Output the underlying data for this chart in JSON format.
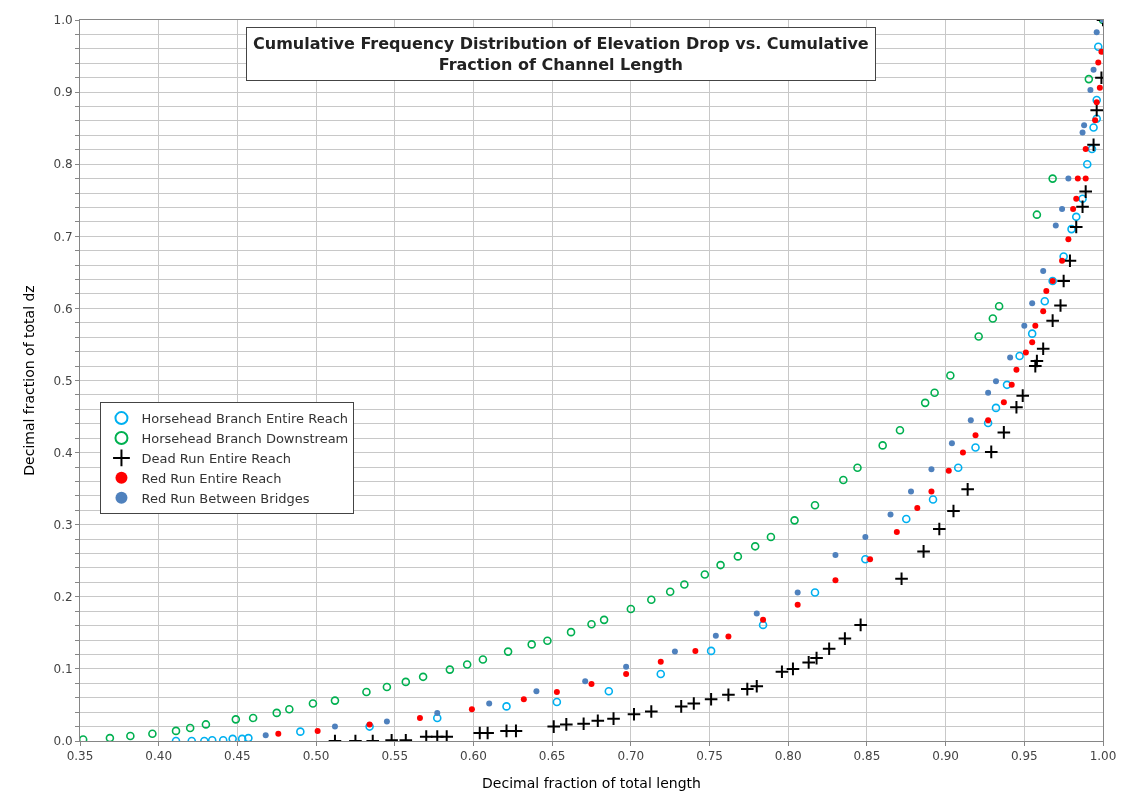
{
  "chart_data": {
    "type": "scatter",
    "title": "Cumulative Frequency Distribution of Elevation Drop vs. Cumulative Fraction of Channel Length",
    "xlabel": "Decimal fraction of total length",
    "ylabel": "Decimal fraction of total dz",
    "xlim": [
      0.35,
      1.0
    ],
    "ylim": [
      0.0,
      1.0
    ],
    "xticks": [
      {
        "value": 0.35,
        "label": "0.35"
      },
      {
        "value": 0.4,
        "label": "0.40"
      },
      {
        "value": 0.45,
        "label": "0.45"
      },
      {
        "value": 0.5,
        "label": "0.50"
      },
      {
        "value": 0.55,
        "label": "0.55"
      },
      {
        "value": 0.6,
        "label": "0.60"
      },
      {
        "value": 0.65,
        "label": "0.65"
      },
      {
        "value": 0.7,
        "label": "0.70"
      },
      {
        "value": 0.75,
        "label": "0.75"
      },
      {
        "value": 0.8,
        "label": "0.80"
      },
      {
        "value": 0.85,
        "label": "0.85"
      },
      {
        "value": 0.9,
        "label": "0.90"
      },
      {
        "value": 0.95,
        "label": "0.95"
      },
      {
        "value": 1.0,
        "label": "1.00"
      }
    ],
    "yticks": [
      {
        "value": 0.0,
        "label": "0.0"
      },
      {
        "value": 0.02,
        "label": null
      },
      {
        "value": 0.04,
        "label": null
      },
      {
        "value": 0.06,
        "label": null
      },
      {
        "value": 0.08,
        "label": null
      },
      {
        "value": 0.1,
        "label": "0.1"
      },
      {
        "value": 0.12,
        "label": null
      },
      {
        "value": 0.14,
        "label": null
      },
      {
        "value": 0.16,
        "label": null
      },
      {
        "value": 0.18,
        "label": null
      },
      {
        "value": 0.2,
        "label": "0.2"
      },
      {
        "value": 0.22,
        "label": null
      },
      {
        "value": 0.24,
        "label": null
      },
      {
        "value": 0.26,
        "label": null
      },
      {
        "value": 0.28,
        "label": null
      },
      {
        "value": 0.3,
        "label": "0.3"
      },
      {
        "value": 0.32,
        "label": null
      },
      {
        "value": 0.34,
        "label": null
      },
      {
        "value": 0.36,
        "label": null
      },
      {
        "value": 0.38,
        "label": null
      },
      {
        "value": 0.4,
        "label": "0.4"
      },
      {
        "value": 0.42,
        "label": null
      },
      {
        "value": 0.44,
        "label": null
      },
      {
        "value": 0.46,
        "label": null
      },
      {
        "value": 0.48,
        "label": null
      },
      {
        "value": 0.5,
        "label": "0.5"
      },
      {
        "value": 0.52,
        "label": null
      },
      {
        "value": 0.54,
        "label": null
      },
      {
        "value": 0.56,
        "label": null
      },
      {
        "value": 0.58,
        "label": null
      },
      {
        "value": 0.6,
        "label": "0.6"
      },
      {
        "value": 0.62,
        "label": null
      },
      {
        "value": 0.64,
        "label": null
      },
      {
        "value": 0.66,
        "label": null
      },
      {
        "value": 0.68,
        "label": null
      },
      {
        "value": 0.7,
        "label": "0.7"
      },
      {
        "value": 0.72,
        "label": null
      },
      {
        "value": 0.74,
        "label": null
      },
      {
        "value": 0.76,
        "label": null
      },
      {
        "value": 0.78,
        "label": null
      },
      {
        "value": 0.8,
        "label": "0.8"
      },
      {
        "value": 0.82,
        "label": null
      },
      {
        "value": 0.84,
        "label": null
      },
      {
        "value": 0.86,
        "label": null
      },
      {
        "value": 0.88,
        "label": null
      },
      {
        "value": 0.9,
        "label": "0.9"
      },
      {
        "value": 0.92,
        "label": null
      },
      {
        "value": 0.94,
        "label": null
      },
      {
        "value": 0.96,
        "label": null
      },
      {
        "value": 0.98,
        "label": null
      },
      {
        "value": 1.0,
        "label": "1.0"
      }
    ],
    "grid": true,
    "legend": "left",
    "series": [
      {
        "name": "Horsehead Branch Entire Reach",
        "color": "#00b0f0",
        "marker": "circle-open",
        "x": [
          0.411,
          0.421,
          0.429,
          0.434,
          0.441,
          0.447,
          0.453,
          0.457,
          0.49,
          0.534,
          0.577,
          0.621,
          0.653,
          0.686,
          0.719,
          0.751,
          0.784,
          0.817,
          0.849,
          0.875,
          0.892,
          0.908,
          0.919,
          0.927,
          0.932,
          0.939,
          0.947,
          0.955,
          0.963,
          0.968,
          0.975,
          0.98,
          0.983,
          0.987,
          0.99,
          0.993,
          0.994,
          0.996,
          0.996,
          0.997
        ],
        "values": [
          0.0,
          0.0,
          0.0,
          0.001,
          0.001,
          0.003,
          0.003,
          0.004,
          0.013,
          0.02,
          0.032,
          0.048,
          0.054,
          0.069,
          0.093,
          0.125,
          0.161,
          0.206,
          0.252,
          0.308,
          0.335,
          0.379,
          0.407,
          0.441,
          0.462,
          0.494,
          0.534,
          0.565,
          0.61,
          0.638,
          0.672,
          0.71,
          0.727,
          0.752,
          0.8,
          0.821,
          0.851,
          0.863,
          0.889,
          0.963
        ]
      },
      {
        "name": "Horsehead Branch Downstream",
        "color": "#00b050",
        "marker": "circle-open",
        "x": [
          0.352,
          0.369,
          0.382,
          0.396,
          0.411,
          0.42,
          0.43,
          0.449,
          0.46,
          0.475,
          0.483,
          0.498,
          0.512,
          0.532,
          0.545,
          0.557,
          0.568,
          0.585,
          0.596,
          0.606,
          0.622,
          0.637,
          0.647,
          0.662,
          0.675,
          0.683,
          0.7,
          0.713,
          0.725,
          0.734,
          0.747,
          0.757,
          0.768,
          0.779,
          0.789,
          0.804,
          0.817,
          0.835,
          0.844,
          0.86,
          0.871,
          0.887,
          0.893,
          0.903,
          0.921,
          0.93,
          0.934,
          0.958,
          0.968,
          0.991,
          1.0
        ],
        "values": [
          0.002,
          0.004,
          0.007,
          0.01,
          0.014,
          0.018,
          0.023,
          0.03,
          0.032,
          0.039,
          0.044,
          0.052,
          0.056,
          0.068,
          0.075,
          0.082,
          0.089,
          0.099,
          0.106,
          0.113,
          0.124,
          0.134,
          0.139,
          0.151,
          0.162,
          0.168,
          0.183,
          0.196,
          0.207,
          0.217,
          0.231,
          0.244,
          0.256,
          0.27,
          0.283,
          0.306,
          0.327,
          0.362,
          0.379,
          0.41,
          0.431,
          0.469,
          0.483,
          0.507,
          0.561,
          0.586,
          0.603,
          0.73,
          0.78,
          0.918,
          1.0
        ]
      },
      {
        "name": "Dead Run Entire Reach",
        "color": "#000000",
        "marker": "cross",
        "x": [
          0.512,
          0.525,
          0.536,
          0.548,
          0.557,
          0.57,
          0.577,
          0.583,
          0.604,
          0.609,
          0.621,
          0.627,
          0.651,
          0.659,
          0.67,
          0.679,
          0.689,
          0.702,
          0.713,
          0.732,
          0.74,
          0.751,
          0.762,
          0.774,
          0.78,
          0.796,
          0.803,
          0.813,
          0.818,
          0.826,
          0.836,
          0.846,
          0.872,
          0.886,
          0.896,
          0.905,
          0.914,
          0.929,
          0.937,
          0.945,
          0.949,
          0.957,
          0.958,
          0.962,
          0.968,
          0.973,
          0.975,
          0.979,
          0.983,
          0.987,
          0.989,
          0.994,
          0.996,
          0.999,
          1.0
        ],
        "values": [
          0.0,
          0.0,
          0.0,
          0.001,
          0.001,
          0.006,
          0.006,
          0.006,
          0.011,
          0.011,
          0.014,
          0.014,
          0.02,
          0.023,
          0.024,
          0.028,
          0.031,
          0.037,
          0.041,
          0.048,
          0.052,
          0.058,
          0.064,
          0.072,
          0.076,
          0.096,
          0.1,
          0.109,
          0.115,
          0.128,
          0.142,
          0.161,
          0.225,
          0.263,
          0.294,
          0.319,
          0.349,
          0.401,
          0.428,
          0.463,
          0.479,
          0.52,
          0.527,
          0.544,
          0.583,
          0.604,
          0.638,
          0.666,
          0.713,
          0.741,
          0.762,
          0.827,
          0.875,
          0.92,
          1.0
        ]
      },
      {
        "name": "Red Run Entire Reach",
        "color": "#ff0000",
        "marker": "circle",
        "x": [
          0.476,
          0.501,
          0.534,
          0.566,
          0.599,
          0.632,
          0.653,
          0.675,
          0.697,
          0.719,
          0.741,
          0.762,
          0.784,
          0.806,
          0.83,
          0.852,
          0.869,
          0.882,
          0.891,
          0.902,
          0.911,
          0.919,
          0.927,
          0.937,
          0.942,
          0.945,
          0.951,
          0.955,
          0.957,
          0.962,
          0.964,
          0.968,
          0.974,
          0.978,
          0.981,
          0.983,
          0.984,
          0.989,
          0.989,
          0.995,
          0.996,
          0.998,
          0.997,
          0.999
        ],
        "values": [
          0.01,
          0.014,
          0.023,
          0.032,
          0.044,
          0.058,
          0.068,
          0.079,
          0.093,
          0.11,
          0.125,
          0.145,
          0.168,
          0.189,
          0.223,
          0.252,
          0.29,
          0.323,
          0.346,
          0.375,
          0.4,
          0.424,
          0.445,
          0.47,
          0.494,
          0.515,
          0.539,
          0.553,
          0.576,
          0.596,
          0.624,
          0.638,
          0.666,
          0.696,
          0.738,
          0.752,
          0.78,
          0.78,
          0.821,
          0.861,
          0.886,
          0.906,
          0.941,
          0.956
        ]
      },
      {
        "name": "Red Run Between Bridges",
        "color": "#4f81bd",
        "marker": "circle",
        "x": [
          0.468,
          0.512,
          0.545,
          0.577,
          0.61,
          0.64,
          0.671,
          0.697,
          0.728,
          0.754,
          0.78,
          0.806,
          0.83,
          0.849,
          0.865,
          0.878,
          0.891,
          0.904,
          0.916,
          0.927,
          0.932,
          0.941,
          0.95,
          0.955,
          0.962,
          0.97,
          0.974,
          0.978,
          0.987,
          0.988,
          0.992,
          0.994,
          0.996,
          1.0
        ],
        "values": [
          0.008,
          0.02,
          0.027,
          0.039,
          0.052,
          0.069,
          0.083,
          0.103,
          0.124,
          0.146,
          0.177,
          0.206,
          0.258,
          0.283,
          0.314,
          0.346,
          0.377,
          0.413,
          0.445,
          0.483,
          0.499,
          0.532,
          0.576,
          0.607,
          0.652,
          0.715,
          0.738,
          0.78,
          0.844,
          0.854,
          0.903,
          0.931,
          0.983,
          1.0
        ]
      }
    ]
  }
}
